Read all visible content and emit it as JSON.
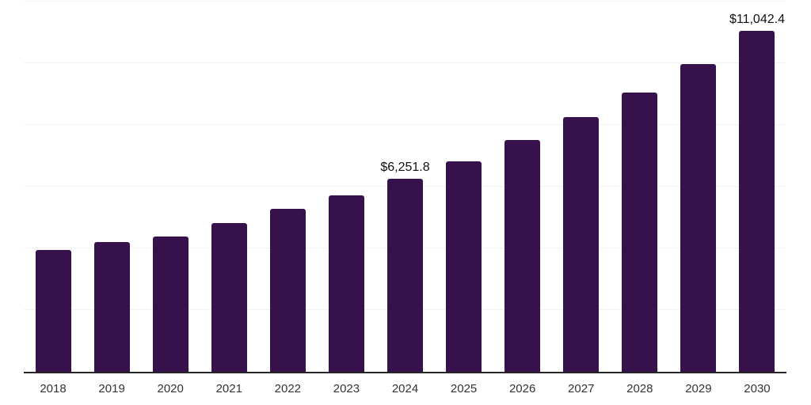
{
  "chart_data": {
    "type": "bar",
    "title": "",
    "xlabel": "",
    "ylabel": "",
    "categories": [
      "2018",
      "2019",
      "2020",
      "2021",
      "2022",
      "2023",
      "2024",
      "2025",
      "2026",
      "2027",
      "2028",
      "2029",
      "2030"
    ],
    "values": [
      3950,
      4210,
      4390,
      4820,
      5280,
      5720,
      6251.8,
      6830,
      7510,
      8260,
      9050,
      9980,
      11042.4
    ],
    "data_labels": [
      "",
      "",
      "",
      "",
      "",
      "",
      "$6,251.8",
      "",
      "",
      "",
      "",
      "",
      "$11,042.4"
    ],
    "ylim": [
      0,
      12000
    ],
    "y_gridlines": [
      2000,
      4000,
      6000,
      8000,
      10000,
      12000
    ],
    "legend": "none",
    "grid": "horizontal",
    "colors": {
      "bar": "#36114B",
      "gridline": "#F2F2F2",
      "axis_line": "#262626",
      "tick_label": "#333333",
      "data_label": "#111111",
      "background": "#FFFFFF"
    }
  }
}
